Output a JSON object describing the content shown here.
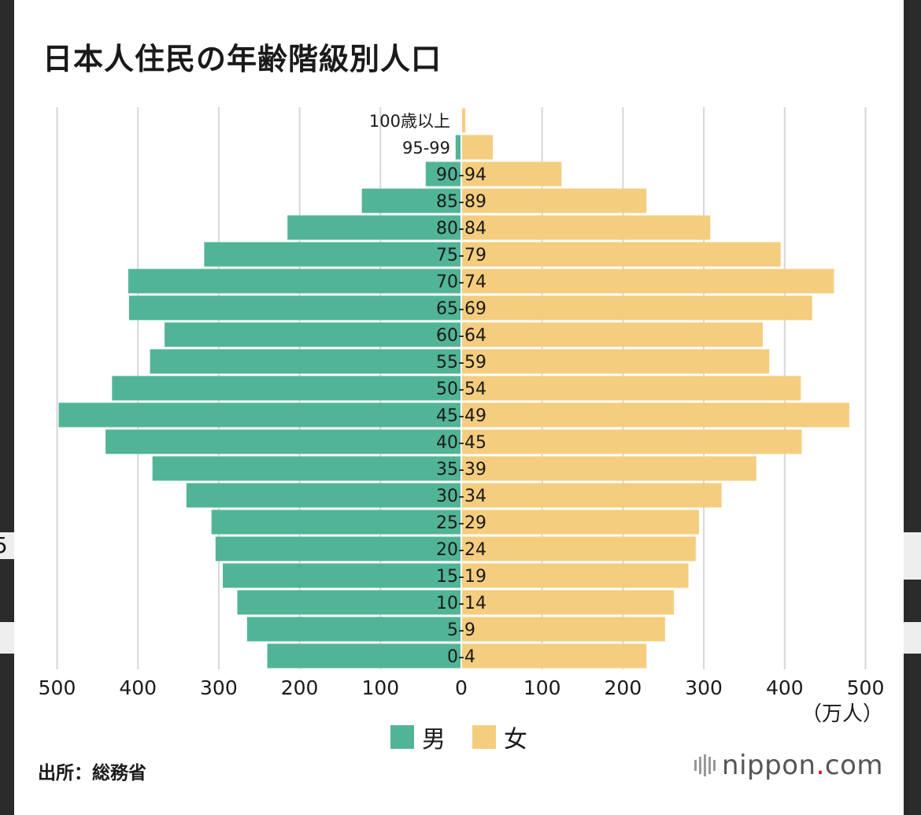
{
  "title": "日本人住民の年齢階級別人口",
  "legend": {
    "male": "男",
    "female": "女"
  },
  "unit": "（万人）",
  "source": "出所：総務省",
  "brand": {
    "name": "nippon",
    "dot": ".",
    "tld": "com"
  },
  "colors": {
    "male": "#52b497",
    "female": "#f5cd7f",
    "grid": "#d7d7d7",
    "axis": "#1a1a1a"
  },
  "chart_data": {
    "type": "bar",
    "orientation": "horizontal-pyramid",
    "categories": [
      "0-4",
      "5-9",
      "10-14",
      "15-19",
      "20-24",
      "25-29",
      "30-34",
      "35-39",
      "40-45",
      "45-49",
      "50-54",
      "55-59",
      "60-64",
      "65-69",
      "70-74",
      "75-79",
      "80-84",
      "85-89",
      "90-94",
      "95-99",
      "100歳以上"
    ],
    "series": [
      {
        "name": "男",
        "values": [
          240,
          265,
          277,
          295,
          304,
          309,
          340,
          382,
          440,
          498,
          432,
          385,
          367,
          411,
          412,
          318,
          215,
          123,
          44,
          7,
          1
        ]
      },
      {
        "name": "女",
        "values": [
          229,
          252,
          263,
          281,
          290,
          294,
          322,
          365,
          421,
          480,
          420,
          381,
          373,
          434,
          461,
          395,
          308,
          229,
          124,
          39,
          5
        ]
      }
    ],
    "xlim": [
      -500,
      500
    ],
    "x_ticks": [
      "500",
      "400",
      "300",
      "200",
      "100",
      "0",
      "100",
      "200",
      "300",
      "400",
      "500"
    ],
    "xlabel": "（万人）",
    "grid": true,
    "legend_position": "bottom"
  }
}
